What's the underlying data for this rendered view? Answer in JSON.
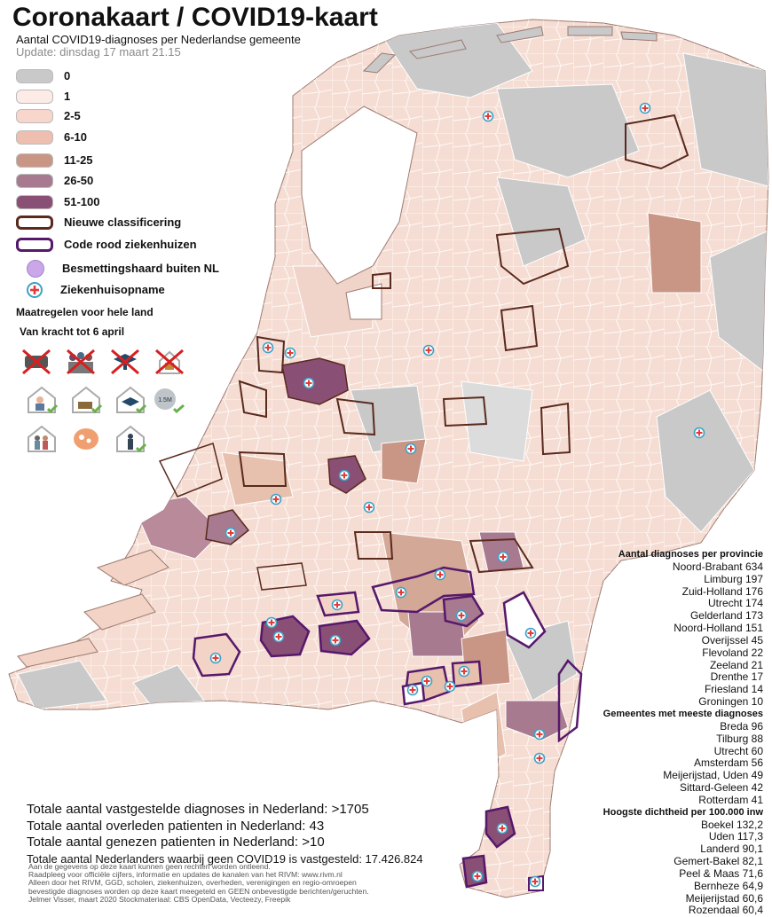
{
  "header": {
    "title": "Coronakaart / COVID19-kaart",
    "subtitle": "Aantal COVID19-diagnoses per Nederlandse gemeente",
    "update": "Update: dinsdag 17 maart 21.15"
  },
  "legend": {
    "items": [
      {
        "label": "0",
        "color": "#c9c9c9"
      },
      {
        "label": "1",
        "color": "#fcebe6"
      },
      {
        "label": "2-5",
        "color": "#f8d6cb"
      },
      {
        "label": "6-10",
        "color": "#eebfb0"
      },
      {
        "label": "11-25",
        "color": "#c99585"
      },
      {
        "label": "26-50",
        "color": "#a77a8f"
      },
      {
        "label": "51-100",
        "color": "#8a4f75"
      }
    ],
    "new_classification": "Nieuwe classificering",
    "code_red": "Code rood ziekenhuizen",
    "outbreak_abroad": "Besmettingshaard buiten NL",
    "hospital": "Ziekenhuisopname",
    "colors": {
      "outline_new": "#5a2a1e",
      "outline_red": "#56186b",
      "outbreak": "#c9a7e8",
      "hospital_ring": "#3aa3c8",
      "hospital_cross": "#e23b3b"
    }
  },
  "measures": {
    "title": "Maatregelen voor hele land",
    "valid_until": "Van kracht tot 6 april",
    "icons": [
      "no-handshake-icon",
      "no-crowds-icon",
      "schools-closed-icon",
      "restaurants-closed-icon",
      "work-from-home-icon",
      "stay-home-sick-icon",
      "school-open-icon",
      "distance-icon",
      "protect-elderly-icon",
      "wash-hands-icon",
      "stay-home-icon"
    ]
  },
  "provinces": {
    "heading": "Aantal diagnoses per provincie",
    "items": [
      "Noord-Brabant 634",
      "Limburg 197",
      "Zuid-Holland 176",
      "Utrecht 174",
      "Gelderland 173",
      "Noord-Holland 151",
      "Overijssel 45",
      "Flevoland 22",
      "Zeeland 21",
      "Drenthe 17",
      "Friesland  14",
      "Groningen 10"
    ],
    "top_heading": "Gemeentes met meeste diagnoses",
    "top_items": [
      "Breda 96",
      "Tilburg 88",
      "Utrecht 60",
      "Amsterdam 56",
      "Meijerijstad, Uden 49",
      "Sittard-Geleen 42",
      "Rotterdam 41"
    ],
    "density_heading": "Hoogste dichtheid per 100.000 inw",
    "density_items": [
      "Boekel 132,2",
      "Uden 117,3",
      "Landerd 90,1",
      "Gemert-Bakel 82,1",
      "Peel & Maas 71,6",
      "Bernheze 64,9",
      "Meijerijstad 60,6",
      "Rozendaal 60,4"
    ]
  },
  "totals": {
    "diagnoses": "Totale aantal vastgestelde diagnoses in Nederland: >1705",
    "deceased": "Totale aantal overleden patienten in Nederland: 43",
    "recovered": "Totale aantal genezen patienten in Nederland: >10",
    "negative": "Totale aantal Nederlanders waarbij geen COVID19 is vastgesteld: 17.426.824"
  },
  "footnotes": [
    "Aan de gegevens op deze kaart kunnen geen rechten worden ontleend.",
    "Raadpleeg voor officiële cijfers, informatie en updates de kanalen van het RIVM: www.rivm.nl",
    "Alleen door het RIVM, GGD, scholen, ziekenhuizen, overheden, verenigingen en regio-omroepen",
    "bevestigde diagnoses worden op deze kaart meegeteld en GEEN onbevestigde berichten/geruchten.",
    "Jelmer Visser, maart 2020  Stockmateriaal: CBS OpenData, Vecteezy, Freepik"
  ]
}
